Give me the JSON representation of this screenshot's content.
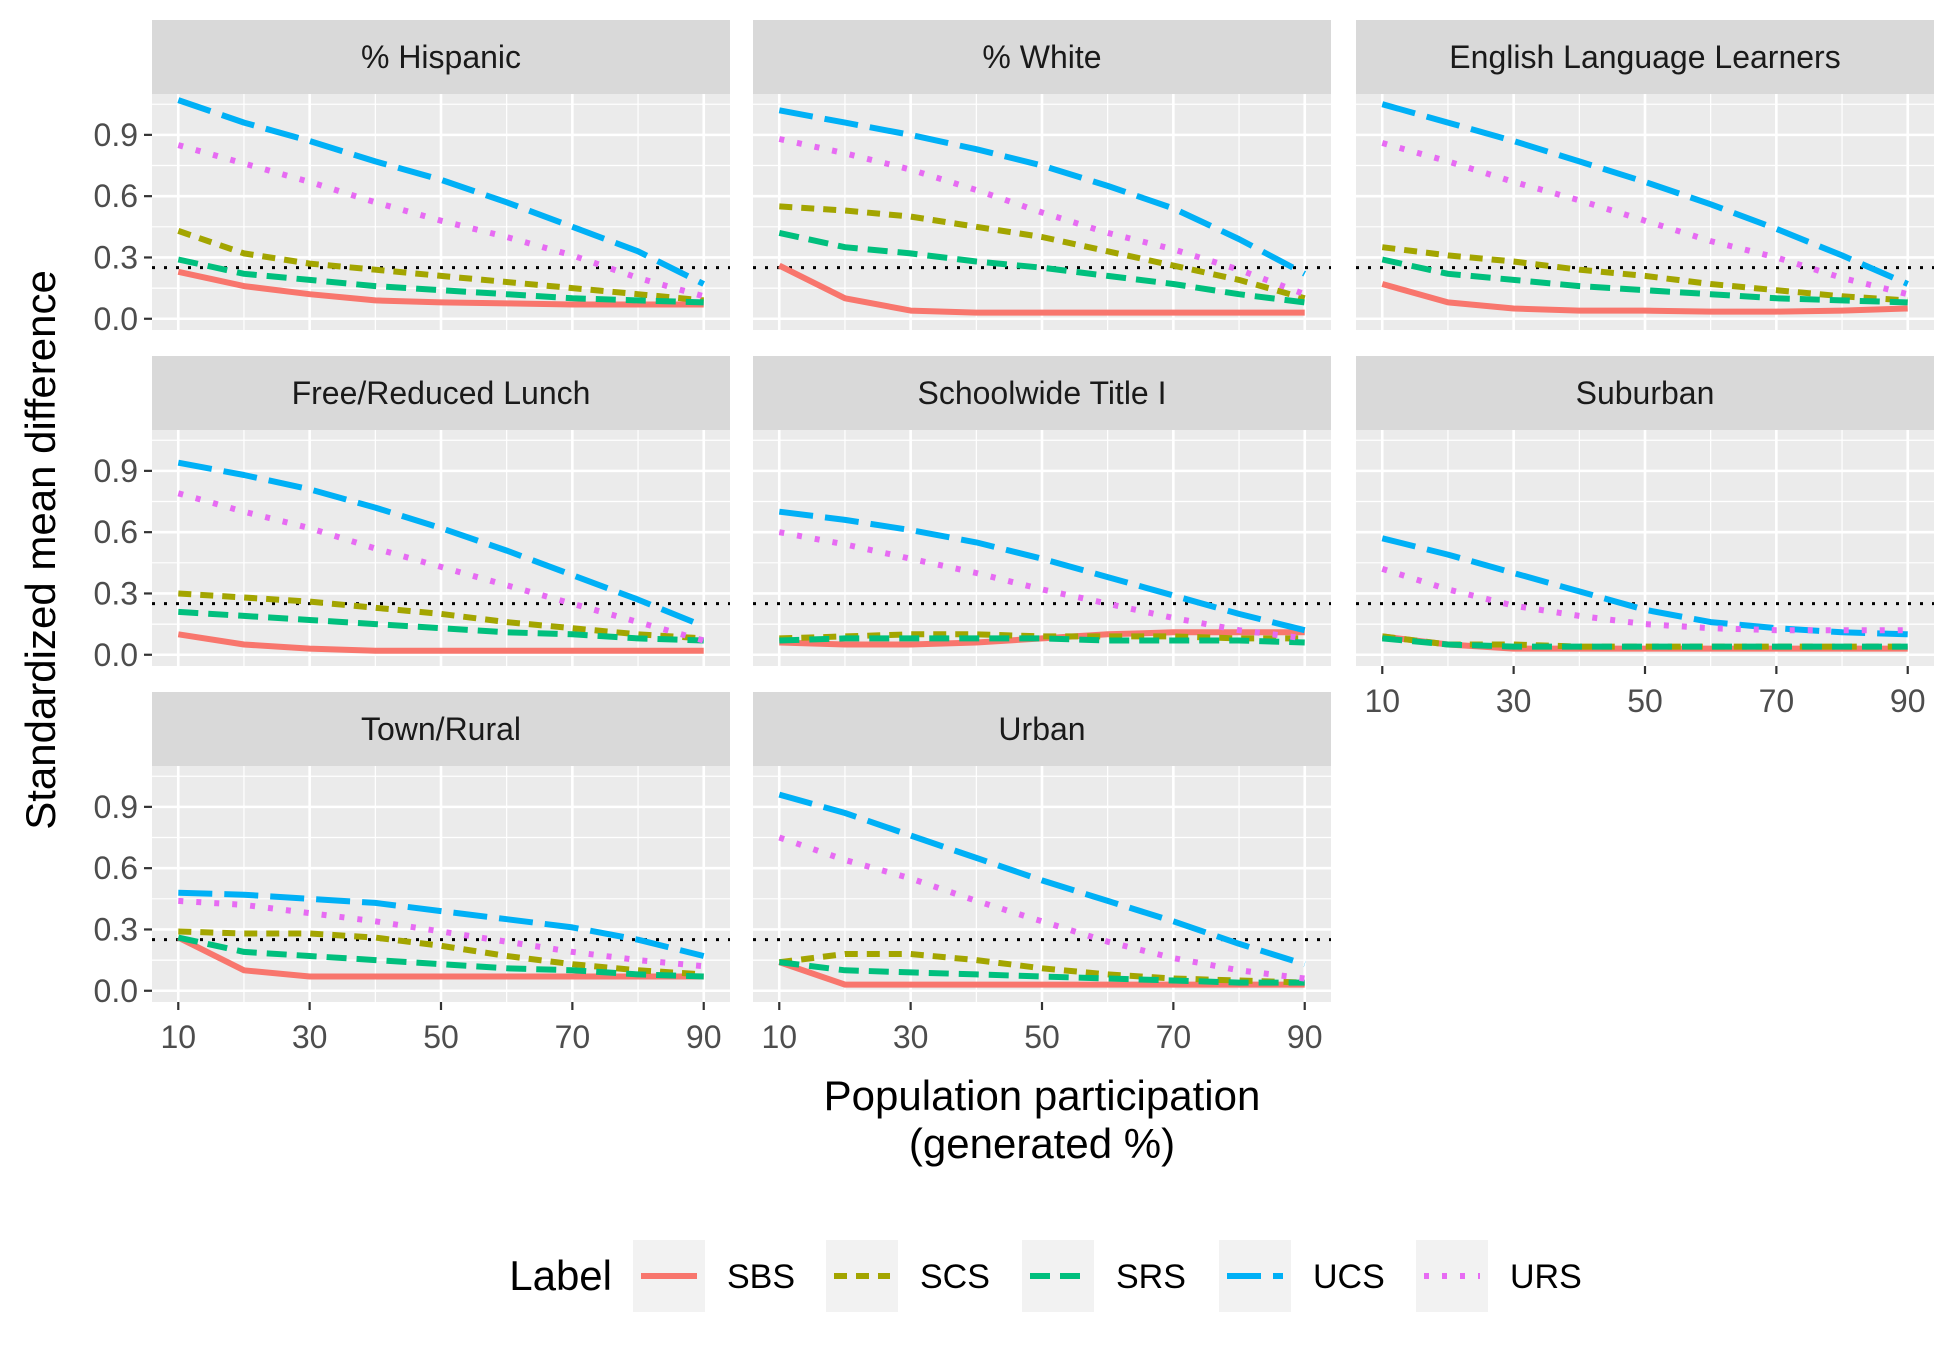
{
  "chart_data": {
    "type": "line",
    "facet_layout": "3 columns x 3 rows, last panel empty",
    "x": [
      10,
      20,
      30,
      40,
      50,
      60,
      70,
      80,
      90
    ],
    "x_ticks": [
      10,
      30,
      50,
      70,
      90
    ],
    "x_tick_labels": [
      "10",
      "30",
      "50",
      "70",
      "90"
    ],
    "y_ticks": [
      0,
      0.3,
      0.6,
      0.9
    ],
    "y_tick_labels": [
      "0.0",
      "0.3",
      "0.6",
      "0.9"
    ],
    "xlim": [
      6,
      94
    ],
    "ylim": [
      -0.055,
      1.1
    ],
    "reference_line": 0.25,
    "xlabel": "Population participation\n(generated %)",
    "ylabel": "Standardized mean difference",
    "legend": {
      "title": "Label",
      "position": "bottom",
      "entries": [
        {
          "name": "SBS",
          "color": "#F8766D",
          "linetype": "solid"
        },
        {
          "name": "SCS",
          "color": "#A3A500",
          "linetype": "short-dash"
        },
        {
          "name": "SRS",
          "color": "#00BF7D",
          "linetype": "dash"
        },
        {
          "name": "UCS",
          "color": "#00B0F6",
          "linetype": "long-dash"
        },
        {
          "name": "URS",
          "color": "#E76BF3",
          "linetype": "dotted"
        }
      ]
    },
    "panels": [
      {
        "title": "% Hispanic",
        "series": {
          "SBS": [
            0.23,
            0.16,
            0.12,
            0.09,
            0.08,
            0.075,
            0.07,
            0.07,
            0.07
          ],
          "SCS": [
            0.43,
            0.32,
            0.27,
            0.24,
            0.21,
            0.18,
            0.15,
            0.12,
            0.09
          ],
          "SRS": [
            0.29,
            0.22,
            0.19,
            0.16,
            0.14,
            0.12,
            0.1,
            0.09,
            0.08
          ],
          "UCS": [
            1.07,
            0.96,
            0.87,
            0.77,
            0.68,
            0.57,
            0.45,
            0.33,
            0.17
          ],
          "URS": [
            0.85,
            0.76,
            0.67,
            0.57,
            0.48,
            0.4,
            0.31,
            0.2,
            0.11
          ]
        }
      },
      {
        "title": "% White",
        "series": {
          "SBS": [
            0.26,
            0.1,
            0.04,
            0.03,
            0.03,
            0.03,
            0.03,
            0.03,
            0.03
          ],
          "SCS": [
            0.55,
            0.53,
            0.5,
            0.45,
            0.4,
            0.33,
            0.26,
            0.19,
            0.1
          ],
          "SRS": [
            0.42,
            0.35,
            0.32,
            0.28,
            0.25,
            0.21,
            0.17,
            0.12,
            0.08
          ],
          "UCS": [
            1.02,
            0.96,
            0.9,
            0.83,
            0.75,
            0.65,
            0.54,
            0.39,
            0.22
          ],
          "URS": [
            0.88,
            0.81,
            0.73,
            0.63,
            0.52,
            0.42,
            0.34,
            0.24,
            0.12
          ]
        }
      },
      {
        "title": "English Language Learners",
        "series": {
          "SBS": [
            0.17,
            0.08,
            0.05,
            0.04,
            0.04,
            0.035,
            0.035,
            0.04,
            0.05
          ],
          "SCS": [
            0.35,
            0.31,
            0.28,
            0.24,
            0.21,
            0.17,
            0.14,
            0.11,
            0.09
          ],
          "SRS": [
            0.29,
            0.22,
            0.19,
            0.16,
            0.14,
            0.12,
            0.1,
            0.09,
            0.08
          ],
          "UCS": [
            1.05,
            0.96,
            0.87,
            0.77,
            0.67,
            0.56,
            0.44,
            0.31,
            0.17
          ],
          "URS": [
            0.86,
            0.77,
            0.67,
            0.58,
            0.48,
            0.38,
            0.3,
            0.2,
            0.12
          ]
        }
      },
      {
        "title": "Free/Reduced Lunch",
        "series": {
          "SBS": [
            0.1,
            0.05,
            0.03,
            0.02,
            0.02,
            0.02,
            0.02,
            0.02,
            0.02
          ],
          "SCS": [
            0.3,
            0.28,
            0.26,
            0.23,
            0.2,
            0.16,
            0.13,
            0.1,
            0.08
          ],
          "SRS": [
            0.21,
            0.19,
            0.17,
            0.15,
            0.13,
            0.11,
            0.1,
            0.08,
            0.07
          ],
          "UCS": [
            0.94,
            0.88,
            0.81,
            0.72,
            0.62,
            0.51,
            0.39,
            0.27,
            0.14
          ],
          "URS": [
            0.79,
            0.7,
            0.62,
            0.52,
            0.43,
            0.34,
            0.25,
            0.16,
            0.07
          ]
        }
      },
      {
        "title": "Schoolwide Title I",
        "series": {
          "SBS": [
            0.06,
            0.05,
            0.05,
            0.06,
            0.08,
            0.1,
            0.11,
            0.11,
            0.11
          ],
          "SCS": [
            0.08,
            0.09,
            0.1,
            0.1,
            0.09,
            0.09,
            0.09,
            0.08,
            0.08
          ],
          "SRS": [
            0.07,
            0.08,
            0.08,
            0.08,
            0.08,
            0.07,
            0.07,
            0.07,
            0.06
          ],
          "UCS": [
            0.7,
            0.66,
            0.61,
            0.55,
            0.47,
            0.38,
            0.29,
            0.2,
            0.12
          ],
          "URS": [
            0.6,
            0.54,
            0.47,
            0.4,
            0.32,
            0.25,
            0.18,
            0.12,
            0.08
          ]
        }
      },
      {
        "title": "Suburban",
        "series": {
          "SBS": [
            0.09,
            0.05,
            0.03,
            0.03,
            0.03,
            0.03,
            0.03,
            0.03,
            0.03
          ],
          "SCS": [
            0.09,
            0.05,
            0.05,
            0.04,
            0.04,
            0.04,
            0.04,
            0.04,
            0.04
          ],
          "SRS": [
            0.08,
            0.05,
            0.04,
            0.04,
            0.04,
            0.04,
            0.04,
            0.04,
            0.04
          ],
          "UCS": [
            0.57,
            0.49,
            0.4,
            0.31,
            0.22,
            0.16,
            0.13,
            0.11,
            0.1
          ],
          "URS": [
            0.42,
            0.32,
            0.24,
            0.19,
            0.15,
            0.13,
            0.12,
            0.12,
            0.12
          ]
        }
      },
      {
        "title": "Town/Rural",
        "series": {
          "SBS": [
            0.26,
            0.1,
            0.07,
            0.07,
            0.07,
            0.07,
            0.07,
            0.07,
            0.07
          ],
          "SCS": [
            0.29,
            0.28,
            0.28,
            0.26,
            0.22,
            0.17,
            0.13,
            0.1,
            0.08
          ],
          "SRS": [
            0.26,
            0.19,
            0.17,
            0.15,
            0.13,
            0.11,
            0.1,
            0.08,
            0.07
          ],
          "UCS": [
            0.48,
            0.47,
            0.45,
            0.43,
            0.39,
            0.35,
            0.31,
            0.25,
            0.17
          ],
          "URS": [
            0.44,
            0.42,
            0.38,
            0.34,
            0.29,
            0.24,
            0.19,
            0.15,
            0.12
          ]
        }
      },
      {
        "title": "Urban",
        "series": {
          "SBS": [
            0.14,
            0.03,
            0.03,
            0.03,
            0.03,
            0.03,
            0.03,
            0.03,
            0.03
          ],
          "SCS": [
            0.14,
            0.18,
            0.18,
            0.15,
            0.11,
            0.08,
            0.06,
            0.05,
            0.04
          ],
          "SRS": [
            0.14,
            0.1,
            0.09,
            0.08,
            0.07,
            0.06,
            0.05,
            0.04,
            0.04
          ],
          "UCS": [
            0.96,
            0.87,
            0.76,
            0.65,
            0.54,
            0.44,
            0.34,
            0.23,
            0.13
          ],
          "URS": [
            0.75,
            0.64,
            0.55,
            0.44,
            0.34,
            0.24,
            0.16,
            0.1,
            0.06
          ]
        }
      }
    ]
  }
}
